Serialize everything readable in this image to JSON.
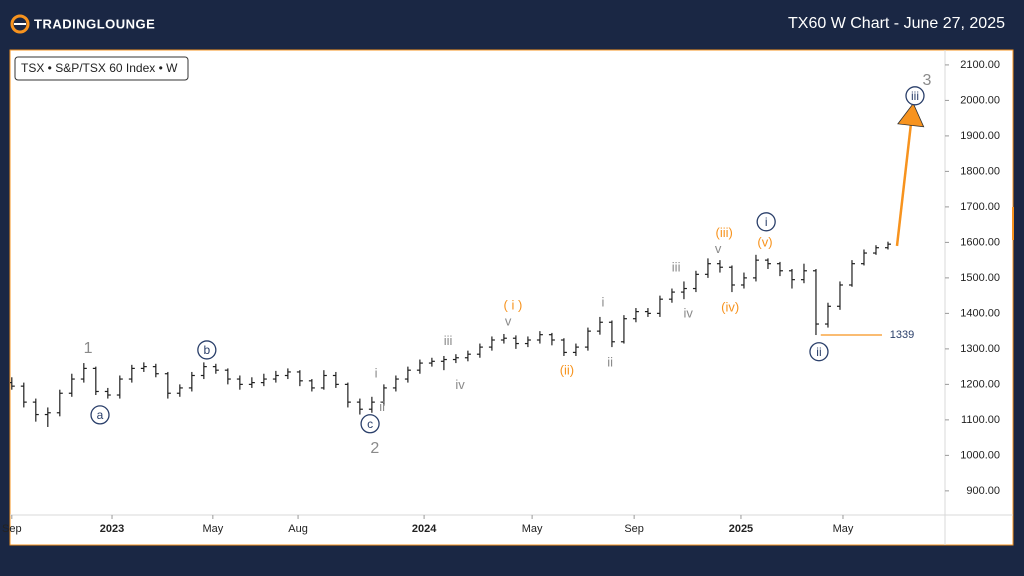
{
  "header": {
    "logo": "TradingLounge",
    "title": "TX60 W Chart - June 27, 2025"
  },
  "chart_data": {
    "type": "ohlc",
    "legend": "TSX • S&P/TSX 60 Index • W",
    "x": [
      0,
      2,
      4,
      6,
      8,
      10,
      12,
      14,
      16,
      18,
      20,
      22,
      24,
      26,
      28,
      30,
      32,
      34,
      36,
      38,
      40,
      42,
      44,
      46,
      48,
      50,
      52,
      54,
      56,
      58,
      60,
      62,
      64,
      66,
      68,
      70,
      72,
      74,
      76,
      78,
      80,
      82,
      84,
      86,
      88,
      90,
      92,
      94,
      96,
      98,
      100,
      102,
      104,
      106,
      108,
      110,
      112,
      114,
      116,
      118,
      120,
      122,
      124,
      126,
      128,
      130,
      132,
      134,
      136,
      138,
      140,
      142,
      144,
      146
    ],
    "open": [
      1205,
      1195,
      1150,
      1115,
      1120,
      1175,
      1215,
      1245,
      1180,
      1170,
      1215,
      1245,
      1250,
      1230,
      1175,
      1190,
      1225,
      1250,
      1240,
      1215,
      1200,
      1205,
      1215,
      1225,
      1235,
      1210,
      1190,
      1225,
      1200,
      1150,
      1130,
      1150,
      1190,
      1215,
      1240,
      1260,
      1265,
      1270,
      1275,
      1285,
      1305,
      1325,
      1330,
      1315,
      1325,
      1340,
      1325,
      1290,
      1305,
      1350,
      1375,
      1320,
      1385,
      1405,
      1400,
      1440,
      1460,
      1470,
      1510,
      1540,
      1530,
      1480,
      1500,
      1550,
      1540,
      1520,
      1495,
      1520,
      1370,
      1420,
      1480,
      1540,
      1570,
      1585
    ],
    "high": [
      1220,
      1205,
      1160,
      1135,
      1185,
      1230,
      1260,
      1250,
      1190,
      1225,
      1255,
      1262,
      1258,
      1235,
      1200,
      1235,
      1262,
      1258,
      1245,
      1225,
      1220,
      1230,
      1238,
      1245,
      1240,
      1215,
      1240,
      1235,
      1205,
      1160,
      1165,
      1200,
      1225,
      1250,
      1270,
      1275,
      1280,
      1285,
      1295,
      1315,
      1335,
      1342,
      1338,
      1335,
      1350,
      1345,
      1330,
      1315,
      1360,
      1390,
      1380,
      1395,
      1415,
      1415,
      1450,
      1470,
      1490,
      1520,
      1555,
      1550,
      1535,
      1515,
      1565,
      1555,
      1545,
      1525,
      1540,
      1525,
      1430,
      1490,
      1550,
      1580,
      1592,
      1602
    ],
    "low": [
      1185,
      1135,
      1095,
      1080,
      1110,
      1165,
      1205,
      1170,
      1160,
      1160,
      1205,
      1235,
      1220,
      1160,
      1165,
      1180,
      1215,
      1230,
      1200,
      1185,
      1190,
      1195,
      1205,
      1215,
      1195,
      1180,
      1185,
      1190,
      1135,
      1115,
      1120,
      1140,
      1180,
      1205,
      1230,
      1250,
      1240,
      1260,
      1265,
      1275,
      1295,
      1315,
      1300,
      1305,
      1315,
      1310,
      1280,
      1280,
      1295,
      1340,
      1305,
      1315,
      1375,
      1390,
      1390,
      1430,
      1440,
      1460,
      1500,
      1515,
      1460,
      1470,
      1490,
      1525,
      1505,
      1470,
      1485,
      1339,
      1360,
      1410,
      1475,
      1535,
      1565,
      1580
    ],
    "close": [
      1195,
      1150,
      1115,
      1120,
      1175,
      1215,
      1245,
      1180,
      1170,
      1215,
      1245,
      1250,
      1230,
      1175,
      1190,
      1225,
      1250,
      1240,
      1215,
      1200,
      1205,
      1215,
      1225,
      1235,
      1210,
      1190,
      1225,
      1200,
      1150,
      1130,
      1150,
      1190,
      1215,
      1240,
      1260,
      1265,
      1270,
      1275,
      1285,
      1305,
      1325,
      1330,
      1315,
      1325,
      1340,
      1325,
      1290,
      1305,
      1350,
      1375,
      1320,
      1385,
      1405,
      1400,
      1440,
      1460,
      1470,
      1510,
      1540,
      1530,
      1480,
      1500,
      1550,
      1540,
      1520,
      1495,
      1520,
      1370,
      1420,
      1480,
      1540,
      1570,
      1585,
      1595
    ],
    "color": "#1f1f1f",
    "xlim": [
      -0.3,
      155.5
    ],
    "ylim": [
      832,
      2142
    ],
    "yticks": [
      {
        "value": 900,
        "label": "900.00"
      },
      {
        "value": 1000,
        "label": "1000.00"
      },
      {
        "value": 1100,
        "label": "1100.00"
      },
      {
        "value": 1200,
        "label": "1200.00"
      },
      {
        "value": 1300,
        "label": "1300.00"
      },
      {
        "value": 1400,
        "label": "1400.00"
      },
      {
        "value": 1500,
        "label": "1500.00"
      },
      {
        "value": 1600,
        "label": "1600.00"
      },
      {
        "value": 1700,
        "label": "1700.00"
      },
      {
        "value": 1800,
        "label": "1800.00"
      },
      {
        "value": 1900,
        "label": "1900.00"
      },
      {
        "value": 2000,
        "label": "2000.00"
      },
      {
        "value": 2100,
        "label": "2100.00"
      }
    ],
    "xticks": [
      {
        "value": 0,
        "label": "Sep"
      },
      {
        "value": 16.7,
        "label": "2023"
      },
      {
        "value": 33.5,
        "label": "May"
      },
      {
        "value": 47.7,
        "label": "Aug"
      },
      {
        "value": 68.7,
        "label": "2024"
      },
      {
        "value": 86.7,
        "label": "May"
      },
      {
        "value": 103.7,
        "label": "Sep"
      },
      {
        "value": 121.5,
        "label": "2025"
      },
      {
        "value": 138.5,
        "label": "May"
      }
    ],
    "price_line": {
      "value": 1339,
      "from": 134.8,
      "to": 145,
      "color": "#f7931e"
    },
    "arrow": {
      "from": [
        147.5,
        1590
      ],
      "to": [
        150,
        1960
      ],
      "color": "#f7931e"
    },
    "annotations": [
      {
        "text": "1",
        "at": [
          12.7,
          1303
        ],
        "style": "gray"
      },
      {
        "text": "a",
        "at": [
          14.7,
          1114
        ],
        "style": "circle"
      },
      {
        "text": "b",
        "at": [
          32.5,
          1297
        ],
        "style": "circle"
      },
      {
        "text": "c",
        "at": [
          59.7,
          1089
        ],
        "style": "circle"
      },
      {
        "text": "2",
        "at": [
          60.5,
          1021
        ],
        "style": "gray"
      },
      {
        "text": "i",
        "at": [
          60.7,
          1232
        ],
        "style": "gray"
      },
      {
        "text": "ii",
        "at": [
          61.7,
          1137
        ],
        "style": "gray"
      },
      {
        "text": "iii",
        "at": [
          72.7,
          1323
        ],
        "style": "gray"
      },
      {
        "text": "iv",
        "at": [
          74.7,
          1199
        ],
        "style": "gray"
      },
      {
        "text": "v",
        "at": [
          82.7,
          1379
        ],
        "style": "gray"
      },
      {
        "text": "( i )",
        "at": [
          83.5,
          1424
        ],
        "style": "orange"
      },
      {
        "text": "(ii)",
        "at": [
          92.5,
          1241
        ],
        "style": "orange"
      },
      {
        "text": "i",
        "at": [
          98.5,
          1432
        ],
        "style": "gray"
      },
      {
        "text": "ii",
        "at": [
          99.7,
          1263
        ],
        "style": "gray"
      },
      {
        "text": "iii",
        "at": [
          110.7,
          1531
        ],
        "style": "gray"
      },
      {
        "text": "iv",
        "at": [
          112.7,
          1401
        ],
        "style": "gray"
      },
      {
        "text": "v",
        "at": [
          117.7,
          1582
        ],
        "style": "gray"
      },
      {
        "text": "(iii)",
        "at": [
          118.7,
          1627
        ],
        "style": "orange"
      },
      {
        "text": "(iv)",
        "at": [
          119.7,
          1418
        ],
        "style": "orange"
      },
      {
        "text": "(v)",
        "at": [
          125.5,
          1601
        ],
        "style": "orange"
      },
      {
        "text": "i",
        "at": [
          125.7,
          1658
        ],
        "style": "circle"
      },
      {
        "text": "ii",
        "at": [
          134.5,
          1292
        ],
        "style": "circle"
      },
      {
        "text": "iii",
        "at": [
          150.5,
          2013
        ],
        "style": "circle"
      },
      {
        "text": "3",
        "at": [
          152.5,
          2058
        ],
        "style": "gray"
      }
    ]
  }
}
